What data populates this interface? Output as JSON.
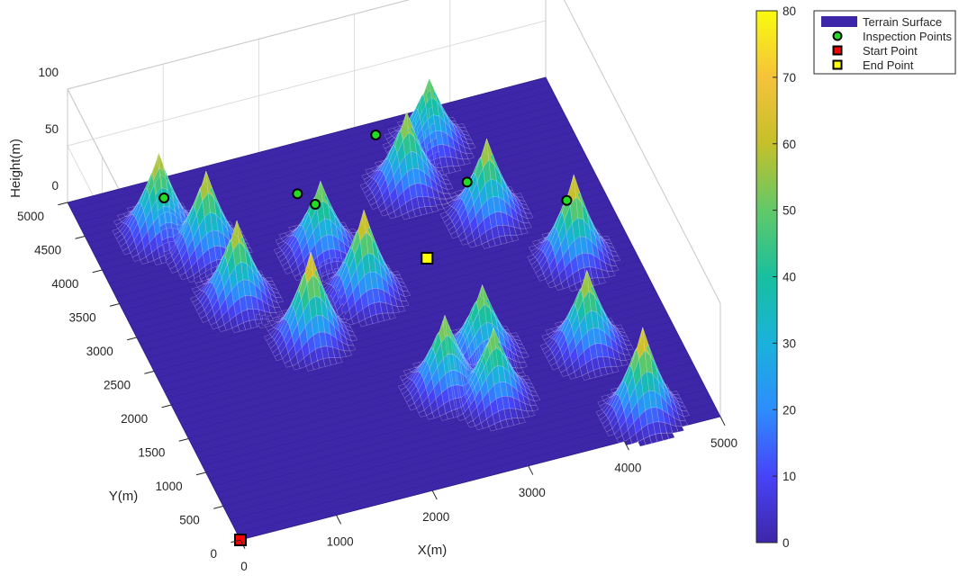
{
  "chart_data": {
    "type": "surface3d",
    "title": "",
    "xlabel": "X(m)",
    "ylabel": "Y(m)",
    "zlabel": "Height(m)",
    "xlim": [
      0,
      5000
    ],
    "ylim": [
      0,
      5000
    ],
    "zlim": [
      0,
      100
    ],
    "x_ticks": [
      "0",
      "1000",
      "2000",
      "3000",
      "4000",
      "5000"
    ],
    "y_ticks": [
      "0",
      "500",
      "1000",
      "1500",
      "2000",
      "2500",
      "3000",
      "3500",
      "4000",
      "4500",
      "5000"
    ],
    "z_ticks": [
      "0",
      "50",
      "100"
    ],
    "grid": true,
    "colormap": "parula",
    "colormap_stops": [
      "#3e26a8",
      "#4743f8",
      "#2d8dfd",
      "#1ab2db",
      "#18bf9f",
      "#61c968",
      "#c5c02a",
      "#f5c23b",
      "#f9fb0e"
    ],
    "colorbar": {
      "position": "right",
      "limits": [
        0,
        80
      ],
      "ticks": [
        "0",
        "10",
        "20",
        "30",
        "40",
        "50",
        "60",
        "70",
        "80"
      ]
    },
    "legend": {
      "position": "top-right",
      "entries": [
        {
          "label": "Terrain Surface",
          "marker": "patch",
          "color": "#3e26a8"
        },
        {
          "label": "Inspection Points",
          "marker": "circle",
          "color": "#22dd22"
        },
        {
          "label": "Start Point",
          "marker": "square",
          "color": "#ff0000"
        },
        {
          "label": "End Point",
          "marker": "square",
          "color": "#ffff00"
        }
      ]
    },
    "peaks": [
      {
        "x": 4300,
        "y": 300,
        "h": 76
      },
      {
        "x": 4100,
        "y": 1350,
        "h": 68
      },
      {
        "x": 4400,
        "y": 2550,
        "h": 74
      },
      {
        "x": 3200,
        "y": 4050,
        "h": 66
      },
      {
        "x": 3600,
        "y": 4500,
        "h": 60
      },
      {
        "x": 3100,
        "y": 1600,
        "h": 62
      },
      {
        "x": 2300,
        "y": 2800,
        "h": 74
      },
      {
        "x": 2100,
        "y": 3500,
        "h": 62
      },
      {
        "x": 1600,
        "y": 2400,
        "h": 76
      },
      {
        "x": 1100,
        "y": 3150,
        "h": 70
      },
      {
        "x": 700,
        "y": 4300,
        "h": 70
      },
      {
        "x": 1050,
        "y": 3900,
        "h": 70
      },
      {
        "x": 2600,
        "y": 1300,
        "h": 64
      },
      {
        "x": 3000,
        "y": 1000,
        "h": 62
      },
      {
        "x": 3800,
        "y": 3400,
        "h": 68
      }
    ],
    "inspection_points": [
      {
        "x": 2100,
        "y": 3650
      },
      {
        "x": 2150,
        "y": 4300
      },
      {
        "x": 900,
        "y": 4700
      },
      {
        "x": 3150,
        "y": 4800
      },
      {
        "x": 3650,
        "y": 3550
      },
      {
        "x": 4600,
        "y": 3300
      }
    ],
    "start_point": {
      "x": 0,
      "y": 0
    },
    "end_point": {
      "x": 3050,
      "y": 3050
    }
  }
}
